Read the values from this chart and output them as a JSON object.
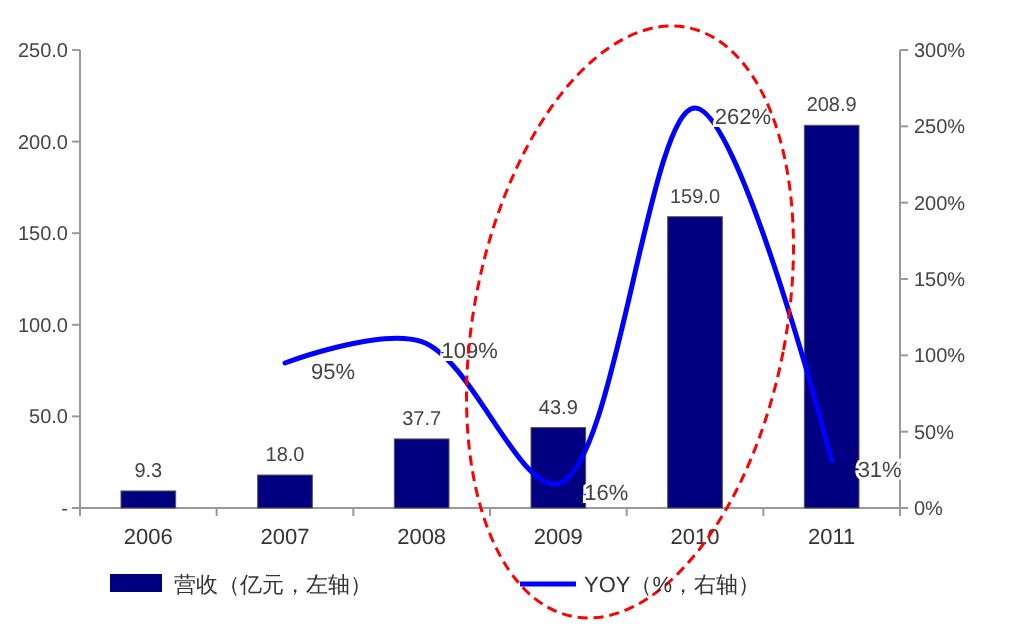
{
  "chart_data": {
    "type": "bar",
    "categories": [
      "2006",
      "2007",
      "2008",
      "2009",
      "2010",
      "2011"
    ],
    "series": [
      {
        "name": "营收（亿元，左轴）",
        "color": "#000080",
        "values": [
          9.3,
          18.0,
          37.7,
          43.9,
          159.0,
          208.9
        ],
        "value_labels": [
          "9.3",
          "18.0",
          "37.7",
          "43.9",
          "159.0",
          "208.9"
        ]
      },
      {
        "name": "YOY（%，右轴）",
        "type": "line",
        "axis": "y2",
        "color": "#0000ff",
        "values": [
          null,
          95,
          109,
          16,
          262,
          31
        ],
        "value_labels": [
          null,
          "95%",
          "109%",
          "16%",
          "262%",
          "31%"
        ]
      }
    ],
    "ylim": [
      0,
      250
    ],
    "yticks": [
      {
        "value": 0,
        "label": "-"
      },
      {
        "value": 50,
        "label": "50.0"
      },
      {
        "value": 100,
        "label": "100.0"
      },
      {
        "value": 150,
        "label": "150.0"
      },
      {
        "value": 200,
        "label": "200.0"
      },
      {
        "value": 250,
        "label": "250.0"
      }
    ],
    "y2lim": [
      0,
      300
    ],
    "y2ticks": [
      {
        "value": 0,
        "label": "0%"
      },
      {
        "value": 50,
        "label": "50%"
      },
      {
        "value": 100,
        "label": "100%"
      },
      {
        "value": 150,
        "label": "150%"
      },
      {
        "value": 200,
        "label": "200%"
      },
      {
        "value": 250,
        "label": "250%"
      },
      {
        "value": 300,
        "label": "300%"
      }
    ],
    "legend": "bottom",
    "line_style": "solid",
    "marker": "none"
  }
}
